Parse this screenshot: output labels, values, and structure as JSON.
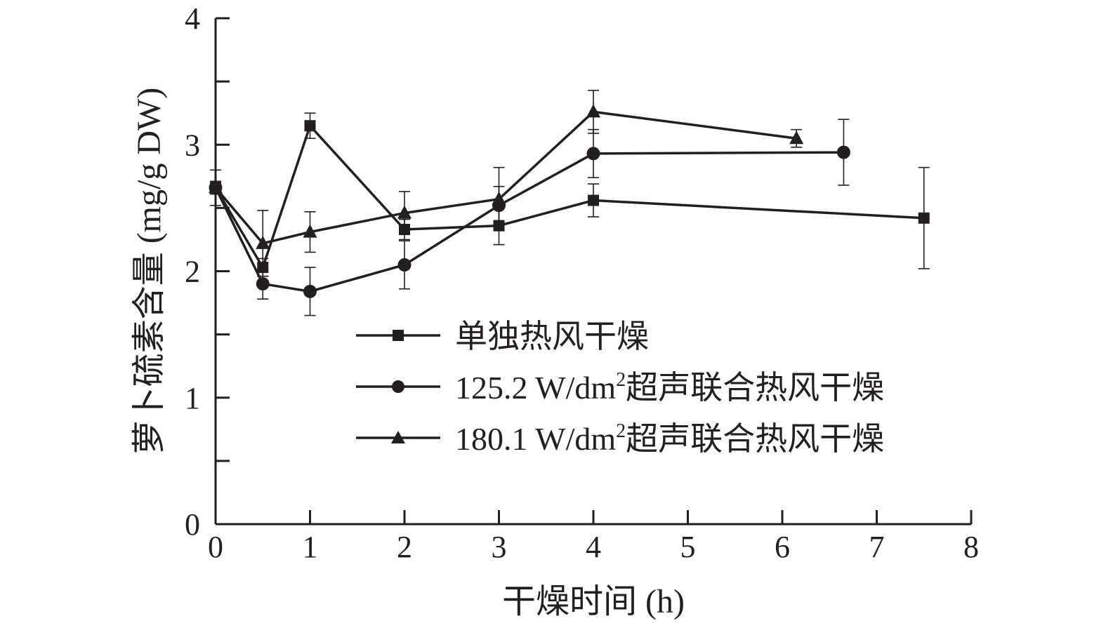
{
  "chart_data": {
    "type": "line",
    "xlabel": "干燥时间 (h)",
    "ylabel": "萝卜硫素含量 (mg/g DW)",
    "xlim": [
      0,
      8
    ],
    "ylim": [
      0,
      4
    ],
    "xticks": [
      "0",
      "1",
      "2",
      "3",
      "4",
      "5",
      "6",
      "7",
      "8"
    ],
    "yticks": [
      "0",
      "1",
      "2",
      "3",
      "4"
    ],
    "grid": false,
    "legend_position": "center-right",
    "series": [
      {
        "name": "单独热风干燥",
        "marker": "square",
        "x": [
          0,
          0.5,
          1,
          2,
          3,
          4,
          7.5
        ],
        "y": [
          2.66,
          2.03,
          3.15,
          2.33,
          2.36,
          2.56,
          2.42
        ],
        "err": [
          0.14,
          0.07,
          0.1,
          0.08,
          0.15,
          0.13,
          0.4
        ]
      },
      {
        "name_prefix": "125.2 W/dm",
        "name_sup": "2",
        "name_suffix": "超声联合热风干燥",
        "marker": "circle",
        "x": [
          0,
          0.5,
          1,
          2,
          3,
          4,
          6.65
        ],
        "y": [
          2.66,
          1.9,
          1.84,
          2.05,
          2.52,
          2.93,
          2.94
        ],
        "err": [
          0.05,
          0.12,
          0.19,
          0.19,
          0.15,
          0.19,
          0.26
        ]
      },
      {
        "name_prefix": "180.1 W/dm",
        "name_sup": "2",
        "name_suffix": "超声联合热风干燥",
        "marker": "triangle",
        "x": [
          0,
          0.5,
          1,
          2,
          3,
          4,
          6.15
        ],
        "y": [
          2.66,
          2.22,
          2.31,
          2.46,
          2.57,
          3.26,
          3.05
        ],
        "err": [
          0.05,
          0.26,
          0.16,
          0.17,
          0.25,
          0.17,
          0.07
        ]
      }
    ]
  }
}
